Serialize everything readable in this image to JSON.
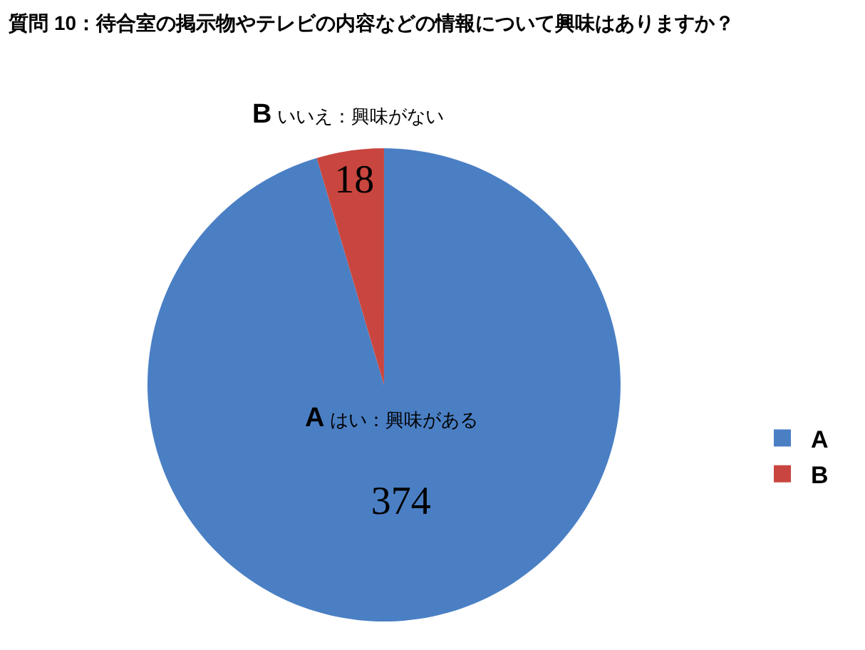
{
  "chart_data": {
    "type": "pie",
    "title": "質問 10：待合室の掲示物やテレビの内容などの情報について興味はありますか？",
    "categories": [
      "A",
      "B"
    ],
    "values": [
      374,
      18
    ],
    "colors": [
      "#4a7fc4",
      "#c8463f"
    ],
    "annotations": [
      "はい：興味がある",
      "いいえ：興味がない"
    ],
    "data_labels": true,
    "legend": "right"
  }
}
